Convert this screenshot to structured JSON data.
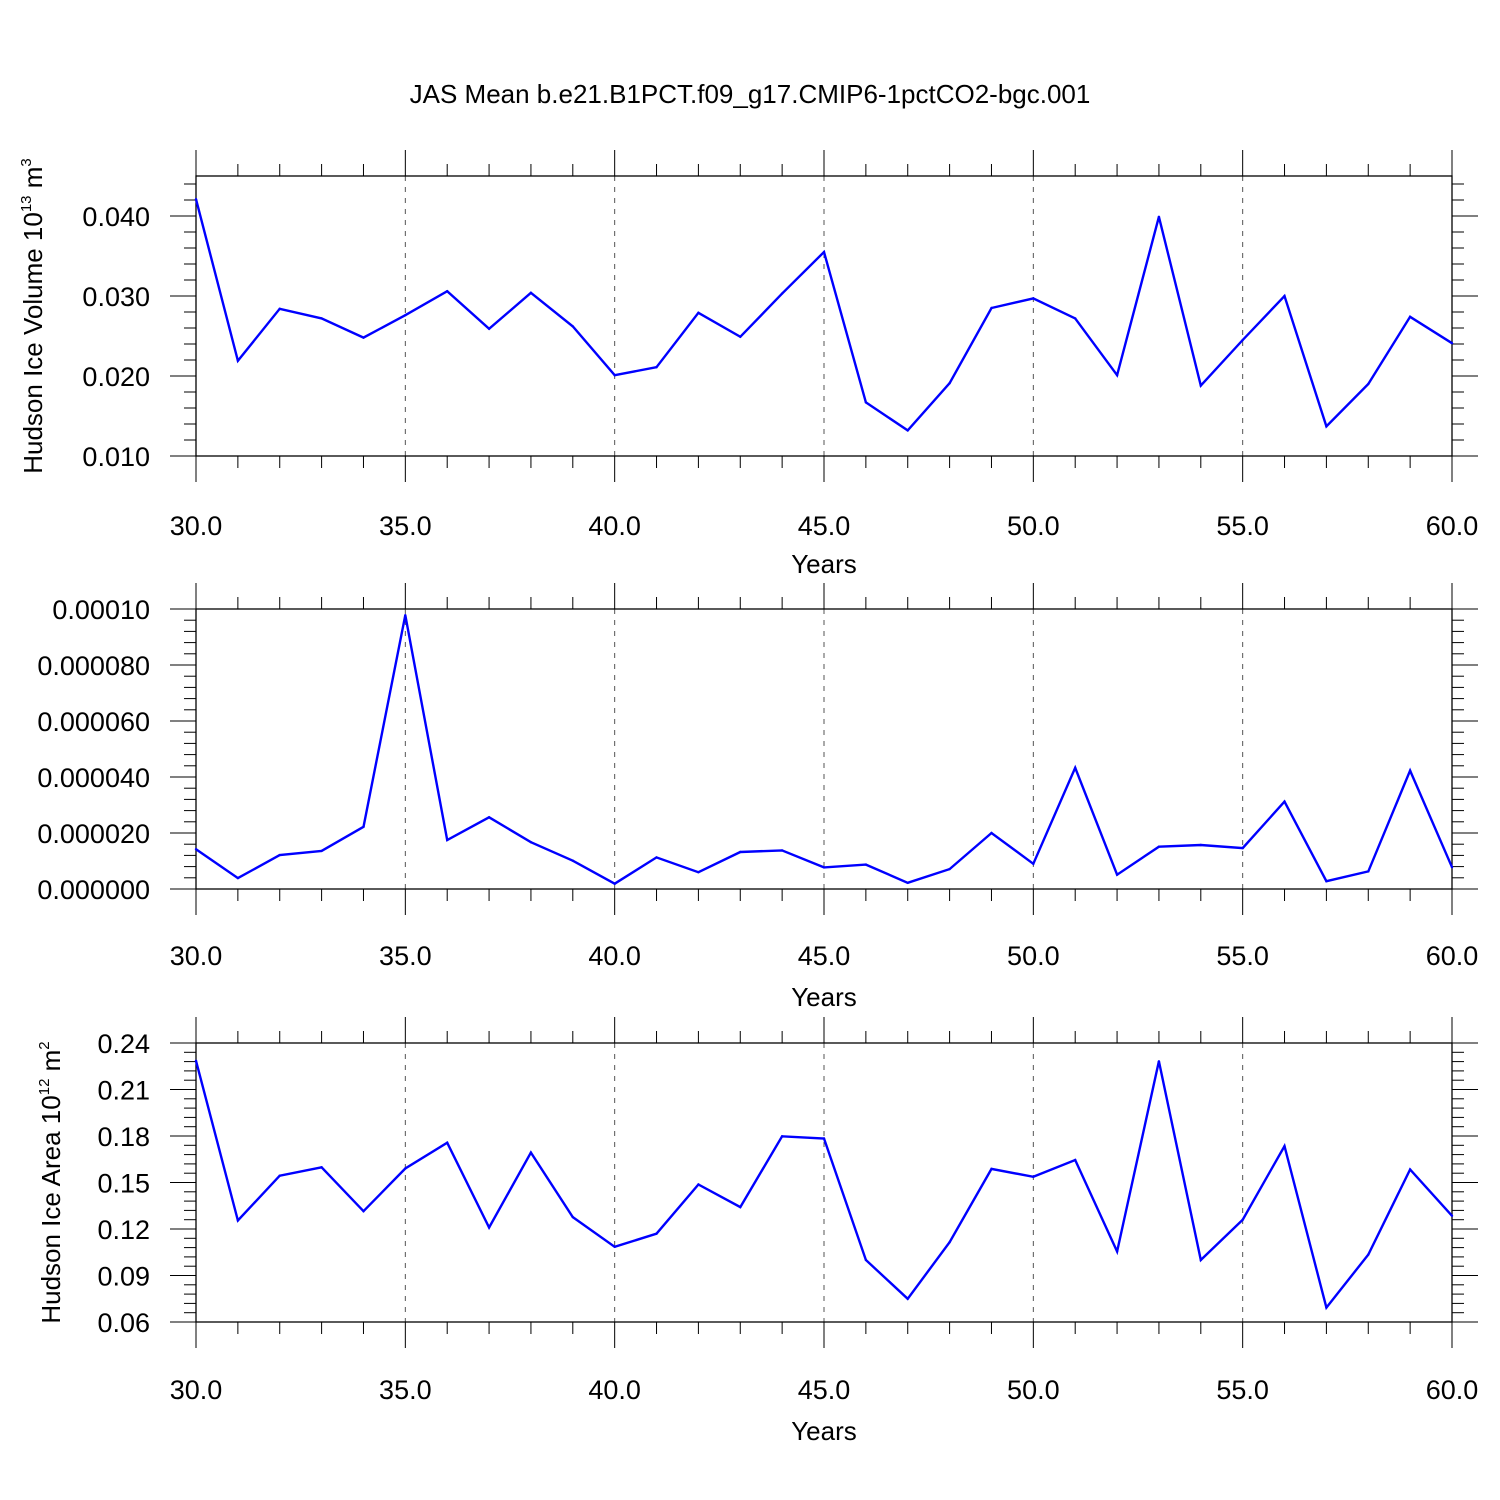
{
  "title": "JAS Mean b.e21.B1PCT.f09_g17.CMIP6-1pctCO2-bgc.001",
  "colors": {
    "line": "#0000ff",
    "axis": "#000000",
    "grid": "#555555"
  },
  "chart_data": [
    {
      "type": "line",
      "ylabel": {
        "prefix": "Hudson Ice Volume 10",
        "exp": "13",
        "unit": " m",
        "unit_exp": "3"
      },
      "xlabel": "Years",
      "xlim": [
        30,
        60
      ],
      "ylim": [
        0.01,
        0.045
      ],
      "xticks": [
        "30.0",
        "35.0",
        "40.0",
        "45.0",
        "50.0",
        "55.0",
        "60.0"
      ],
      "yticks": [
        {
          "value": 0.01,
          "label": "0.010"
        },
        {
          "value": 0.02,
          "label": "0.020"
        },
        {
          "value": 0.03,
          "label": "0.030"
        },
        {
          "value": 0.04,
          "label": "0.040"
        }
      ],
      "grid": "vertical-dashed",
      "series": [
        {
          "x": [
            30,
            31,
            32,
            33,
            34,
            35,
            36,
            37,
            38,
            39,
            40,
            41,
            42,
            43,
            44,
            45,
            46,
            47,
            48,
            49,
            50,
            51,
            52,
            53,
            54,
            55,
            56,
            57,
            58,
            59,
            60
          ],
          "values": [
            0.0421,
            0.0219,
            0.0284,
            0.0272,
            0.0248,
            0.0276,
            0.0306,
            0.0259,
            0.0304,
            0.0262,
            0.0201,
            0.0211,
            0.0279,
            0.0249,
            0.0303,
            0.0355,
            0.0167,
            0.0132,
            0.0191,
            0.0285,
            0.0297,
            0.0272,
            0.0201,
            0.0399,
            0.0188,
            0.0245,
            0.03,
            0.0137,
            0.019,
            0.0274,
            0.0241
          ]
        }
      ]
    },
    {
      "type": "line",
      "ylabel": null,
      "xlabel": "Years",
      "xlim": [
        30,
        60
      ],
      "ylim": [
        0,
        0.0001
      ],
      "xticks": [
        "30.0",
        "35.0",
        "40.0",
        "45.0",
        "50.0",
        "55.0",
        "60.0"
      ],
      "yticks": [
        {
          "value": 0.0,
          "label": "0.000000"
        },
        {
          "value": 2e-05,
          "label": "0.000020"
        },
        {
          "value": 4e-05,
          "label": "0.000040"
        },
        {
          "value": 6e-05,
          "label": "0.000060"
        },
        {
          "value": 8e-05,
          "label": "0.000080"
        },
        {
          "value": 0.0001,
          "label": "0.00010"
        }
      ],
      "grid": "vertical-dashed",
      "series": [
        {
          "x": [
            30,
            31,
            32,
            33,
            34,
            35,
            36,
            37,
            38,
            39,
            40,
            41,
            42,
            43,
            44,
            45,
            46,
            47,
            48,
            49,
            50,
            51,
            52,
            53,
            54,
            55,
            56,
            57,
            58,
            59,
            60
          ],
          "values": [
            1.42e-05,
            3.9e-06,
            1.21e-05,
            1.36e-05,
            2.22e-05,
            9.78e-05,
            1.75e-05,
            2.56e-05,
            1.67e-05,
            1.01e-05,
            1.9e-06,
            1.13e-05,
            6e-06,
            1.32e-05,
            1.38e-05,
            7.7e-06,
            8.7e-06,
            2.2e-06,
            7.1e-06,
            2e-05,
            9e-06,
            4.33e-05,
            5.1e-06,
            1.51e-05,
            1.57e-05,
            1.46e-05,
            3.12e-05,
            2.8e-06,
            6.3e-06,
            4.23e-05,
            7.8e-06
          ]
        }
      ]
    },
    {
      "type": "line",
      "ylabel": {
        "prefix": "Hudson Ice Area 10",
        "exp": "12",
        "unit": " m",
        "unit_exp": "2"
      },
      "xlabel": "Years",
      "xlim": [
        30,
        60
      ],
      "ylim": [
        0.06,
        0.24
      ],
      "xticks": [
        "30.0",
        "35.0",
        "40.0",
        "45.0",
        "50.0",
        "55.0",
        "60.0"
      ],
      "yticks": [
        {
          "value": 0.06,
          "label": "0.06"
        },
        {
          "value": 0.09,
          "label": "0.09"
        },
        {
          "value": 0.12,
          "label": "0.12"
        },
        {
          "value": 0.15,
          "label": "0.15"
        },
        {
          "value": 0.18,
          "label": "0.18"
        },
        {
          "value": 0.21,
          "label": "0.21"
        },
        {
          "value": 0.24,
          "label": "0.24"
        }
      ],
      "grid": "vertical-dashed",
      "series": [
        {
          "x": [
            30,
            31,
            32,
            33,
            34,
            35,
            36,
            37,
            38,
            39,
            40,
            41,
            42,
            43,
            44,
            45,
            46,
            47,
            48,
            49,
            50,
            51,
            52,
            53,
            54,
            55,
            56,
            57,
            58,
            59,
            60
          ],
          "values": [
            0.2285,
            0.1255,
            0.1544,
            0.1598,
            0.1315,
            0.159,
            0.1757,
            0.121,
            0.1693,
            0.1277,
            0.1085,
            0.117,
            0.1487,
            0.1341,
            0.1798,
            0.1784,
            0.1,
            0.075,
            0.1115,
            0.1588,
            0.1537,
            0.1645,
            0.1055,
            0.2282,
            0.1,
            0.126,
            0.1735,
            0.0693,
            0.1035,
            0.1584,
            0.1285
          ]
        }
      ]
    }
  ]
}
